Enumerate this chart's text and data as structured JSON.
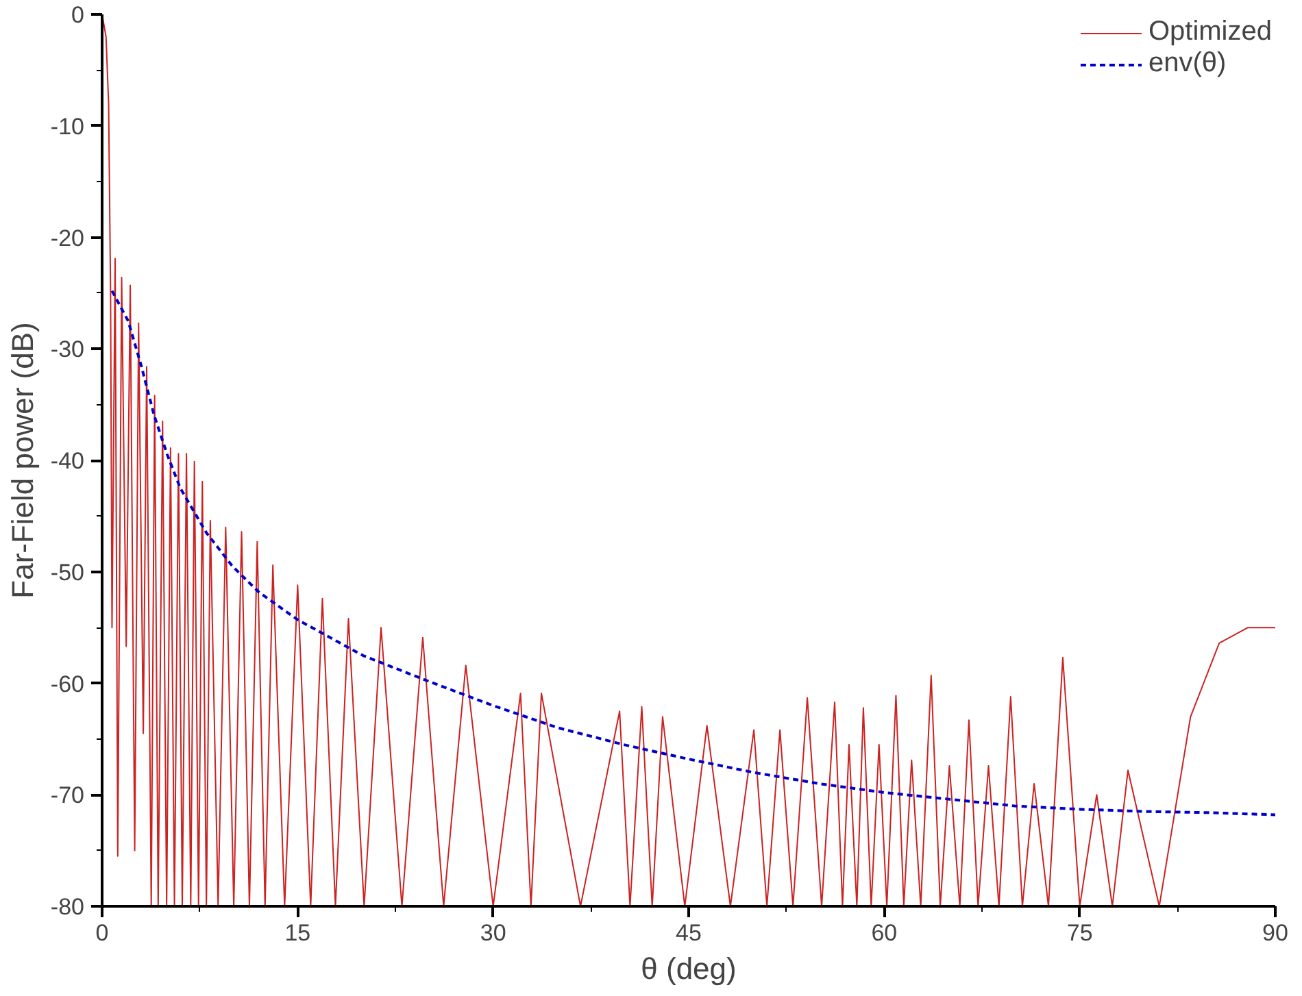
{
  "chart_data": {
    "type": "line",
    "xlabel": "θ (deg)",
    "ylabel": "Far-Field power (dB)",
    "xlim": [
      0,
      90
    ],
    "ylim": [
      -80,
      0
    ],
    "xticks": [
      0,
      15,
      30,
      45,
      60,
      75,
      90
    ],
    "yticks": [
      0,
      -10,
      -20,
      -30,
      -40,
      -50,
      -60,
      -70,
      -80
    ],
    "grid": false,
    "legend": "top right",
    "series": [
      {
        "name": "Optimized",
        "color": "#cc2222",
        "line_style": "solid",
        "x": [
          0,
          0.3,
          0.5,
          0.65,
          0.76,
          1.0,
          1.2,
          1.5,
          1.85,
          2.16,
          2.5,
          2.8,
          3.16,
          3.42,
          3.77,
          4.03,
          4.3,
          4.64,
          4.95,
          5.25,
          5.55,
          5.86,
          6.15,
          6.47,
          6.8,
          7.08,
          7.4,
          7.69,
          8.0,
          8.3,
          8.9,
          9.48,
          10.1,
          10.7,
          11.3,
          11.9,
          12.5,
          13.1,
          14.0,
          15.0,
          16.0,
          16.9,
          17.9,
          18.9,
          20.1,
          21.4,
          23.0,
          24.6,
          26.2,
          27.9,
          30.0,
          32.1,
          32.9,
          33.7,
          36.7,
          39.7,
          40.5,
          41.4,
          42.2,
          43.0,
          44.7,
          46.4,
          48.2,
          50.0,
          51.0,
          52.0,
          53.0,
          54.1,
          55.2,
          56.2,
          56.8,
          57.3,
          57.9,
          58.4,
          59.0,
          59.6,
          60.2,
          60.9,
          61.5,
          62.1,
          62.8,
          63.6,
          64.3,
          65.0,
          65.8,
          66.5,
          67.2,
          68.0,
          68.8,
          69.7,
          70.6,
          71.5,
          72.6,
          73.7,
          75.0,
          76.3,
          77.5,
          78.7,
          81.1,
          83.5,
          85.7,
          87.9,
          90
        ],
        "values": [
          0,
          -2,
          -8,
          -25,
          -55,
          -21.9,
          -75.5,
          -23.6,
          -56.7,
          -24.3,
          -75,
          -27.7,
          -64.5,
          -31.6,
          -80,
          -34.2,
          -80,
          -36.5,
          -80,
          -38.9,
          -80,
          -39.4,
          -80,
          -39.4,
          -80,
          -40.1,
          -80,
          -41.9,
          -80,
          -45.4,
          -80,
          -46.0,
          -80,
          -46.4,
          -80,
          -47.3,
          -80,
          -49.4,
          -80,
          -51.2,
          -80,
          -52.4,
          -80,
          -54.2,
          -80,
          -55.0,
          -80,
          -55.9,
          -80,
          -58.4,
          -80,
          -60.9,
          -80,
          -60.9,
          -80,
          -62.5,
          -80,
          -62.1,
          -80,
          -63.0,
          -80,
          -63.8,
          -80,
          -64.2,
          -80,
          -64.2,
          -80,
          -61.3,
          -80,
          -61.7,
          -80,
          -65.5,
          -80,
          -62.2,
          -80,
          -65.5,
          -80,
          -61.1,
          -80,
          -66.9,
          -80,
          -59.3,
          -80,
          -67.4,
          -80,
          -63.3,
          -80,
          -67.4,
          -80,
          -61.2,
          -80,
          -69.0,
          -80,
          -57.7,
          -80,
          -70.0,
          -80,
          -67.8,
          -80,
          -63.0,
          -56.4,
          -55.0,
          -55.0
        ]
      },
      {
        "name": "env(θ)",
        "color": "#0000cc",
        "line_style": "dashed",
        "x": [
          0.76,
          2,
          3,
          4,
          5,
          6,
          8,
          10,
          12,
          15,
          20,
          25,
          30,
          35,
          40,
          45,
          50,
          55,
          60,
          65,
          70,
          75,
          80,
          85,
          90
        ],
        "values": [
          -24.8,
          -27.5,
          -31.5,
          -36,
          -39.5,
          -42.5,
          -46.5,
          -49.5,
          -51.8,
          -54.3,
          -57.5,
          -59.8,
          -62,
          -64,
          -65.5,
          -66.8,
          -68,
          -69,
          -69.8,
          -70.4,
          -71,
          -71.3,
          -71.5,
          -71.6,
          -71.8
        ]
      }
    ]
  }
}
